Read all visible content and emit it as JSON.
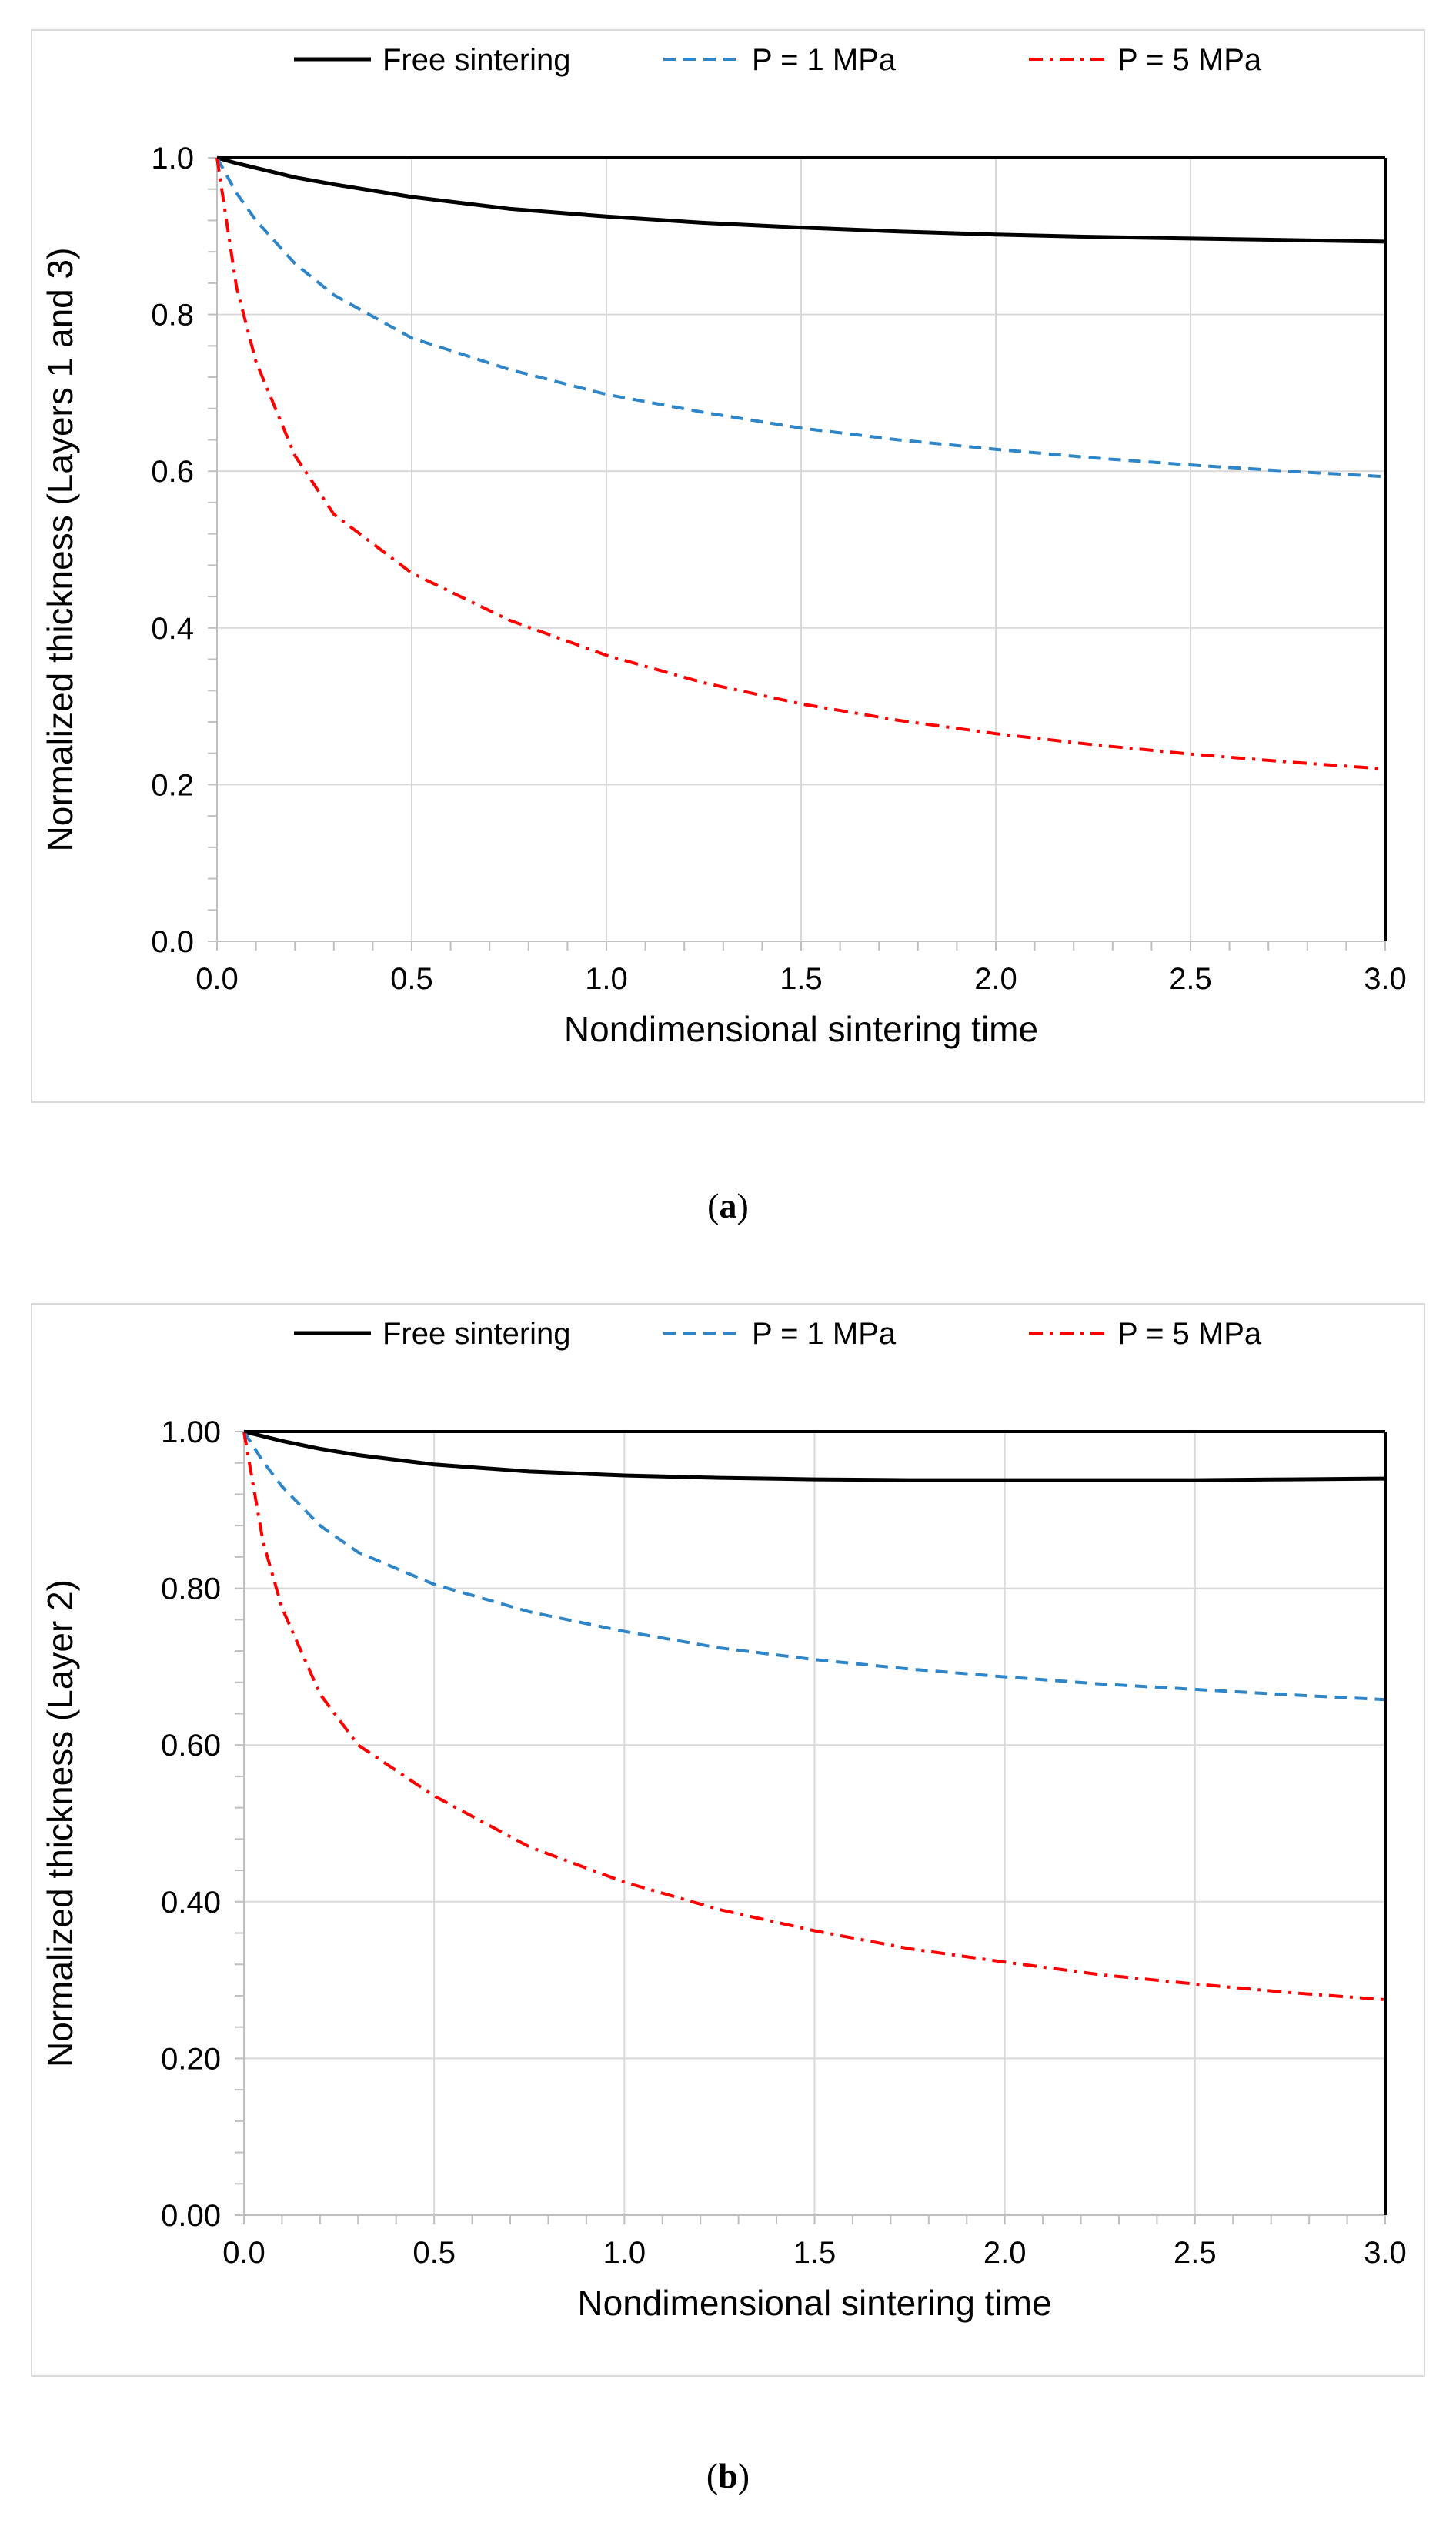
{
  "chart_data": [
    {
      "type": "line",
      "panel_label": "a",
      "xlabel": "Nondimensional sintering time",
      "ylabel": "Normalized thickness (Layers 1 and 3)",
      "xlim": [
        0,
        3
      ],
      "ylim": [
        0,
        1
      ],
      "x_ticks": [
        "0.0",
        "0.5",
        "1.0",
        "1.5",
        "2.0",
        "2.5",
        "3.0"
      ],
      "y_ticks": [
        "0.0",
        "0.2",
        "0.4",
        "0.6",
        "0.8",
        "1.0"
      ],
      "grid": true,
      "legend_position": "top",
      "x": [
        0,
        0.05,
        0.1,
        0.2,
        0.3,
        0.5,
        0.75,
        1.0,
        1.25,
        1.5,
        1.75,
        2.0,
        2.25,
        2.5,
        2.75,
        3.0
      ],
      "series": [
        {
          "name": "Free sintering",
          "color": "#000000",
          "dash": "solid",
          "values": [
            1.0,
            0.993,
            0.987,
            0.975,
            0.966,
            0.95,
            0.935,
            0.925,
            0.917,
            0.911,
            0.906,
            0.902,
            0.899,
            0.897,
            0.895,
            0.893
          ]
        },
        {
          "name": "P = 1 MPa",
          "color": "#2e86c8",
          "dash": "dash",
          "values": [
            1.0,
            0.955,
            0.92,
            0.865,
            0.825,
            0.77,
            0.73,
            0.698,
            0.675,
            0.655,
            0.64,
            0.628,
            0.617,
            0.608,
            0.6,
            0.593
          ]
        },
        {
          "name": "P = 5 MPa",
          "color": "#ff0000",
          "dash": "dashdot",
          "values": [
            1.0,
            0.835,
            0.74,
            0.62,
            0.545,
            0.47,
            0.41,
            0.365,
            0.33,
            0.303,
            0.282,
            0.265,
            0.251,
            0.239,
            0.229,
            0.22
          ]
        }
      ]
    },
    {
      "type": "line",
      "panel_label": "b",
      "xlabel": "Nondimensional sintering time",
      "ylabel": "Normalized thickness (Layer 2)",
      "xlim": [
        0,
        3
      ],
      "ylim": [
        0,
        1
      ],
      "x_ticks": [
        "0.0",
        "0.5",
        "1.0",
        "1.5",
        "2.0",
        "2.5",
        "3.0"
      ],
      "y_ticks": [
        "0.00",
        "0.20",
        "0.40",
        "0.60",
        "0.80",
        "1.00"
      ],
      "grid": true,
      "legend_position": "top",
      "x": [
        0,
        0.05,
        0.1,
        0.2,
        0.3,
        0.5,
        0.75,
        1.0,
        1.25,
        1.5,
        1.75,
        2.0,
        2.25,
        2.5,
        2.75,
        3.0
      ],
      "series": [
        {
          "name": "Free sintering",
          "color": "#000000",
          "dash": "solid",
          "values": [
            1.0,
            0.994,
            0.988,
            0.978,
            0.97,
            0.958,
            0.949,
            0.944,
            0.941,
            0.939,
            0.938,
            0.938,
            0.938,
            0.938,
            0.939,
            0.94
          ]
        },
        {
          "name": "P = 1 MPa",
          "color": "#2e86c8",
          "dash": "dash",
          "values": [
            1.0,
            0.962,
            0.93,
            0.88,
            0.846,
            0.805,
            0.77,
            0.745,
            0.724,
            0.709,
            0.697,
            0.687,
            0.678,
            0.671,
            0.664,
            0.658
          ]
        },
        {
          "name": "P = 5 MPa",
          "color": "#ff0000",
          "dash": "dashdot",
          "values": [
            1.0,
            0.86,
            0.775,
            0.665,
            0.6,
            0.535,
            0.47,
            0.425,
            0.39,
            0.363,
            0.34,
            0.323,
            0.307,
            0.295,
            0.284,
            0.275
          ]
        }
      ]
    }
  ],
  "captions": {
    "a": "a",
    "b": "b"
  }
}
